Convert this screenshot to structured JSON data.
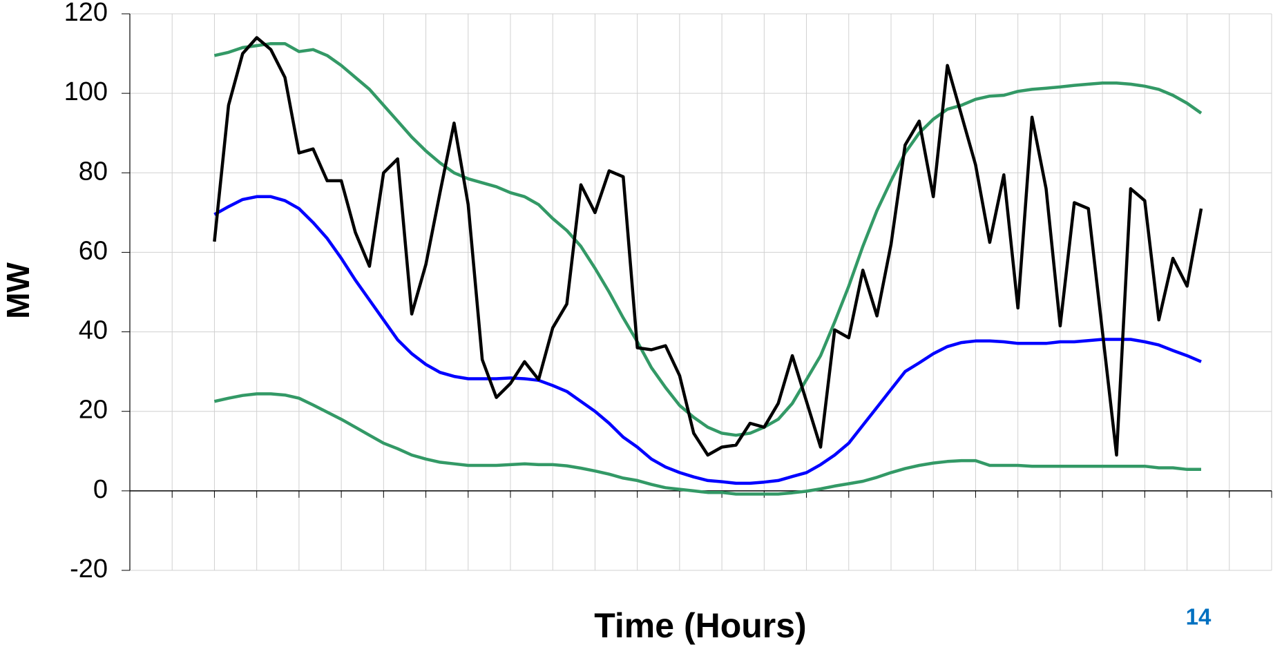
{
  "chart_data": {
    "type": "line",
    "x_label": "Time (Hours)",
    "y_label": "MW",
    "categories": [
      null,
      null,
      null,
      null,
      null,
      null,
      null,
      null,
      null,
      null,
      null,
      null,
      null,
      null,
      null,
      null,
      null,
      null,
      null,
      null,
      null,
      null,
      null,
      null,
      null,
      null,
      null,
      null,
      null,
      null,
      null,
      null,
      null,
      null,
      null,
      null,
      null,
      null,
      null,
      null,
      null,
      null,
      null,
      null,
      null,
      null,
      null,
      null,
      null,
      null,
      null,
      null,
      null,
      null,
      null,
      null,
      null,
      null,
      null,
      null,
      null,
      null,
      null,
      null,
      null,
      null,
      null,
      null,
      null,
      null,
      null
    ],
    "ylim": [
      -20,
      120
    ],
    "yticks": [
      -20,
      0,
      20,
      40,
      60,
      80,
      100,
      120
    ],
    "grid": true,
    "series": [
      {
        "color": "#339966",
        "values": [
          109.5,
          110.3,
          111.5,
          112,
          112.5,
          112.5,
          110.5,
          111,
          109.5,
          107,
          104,
          101,
          97,
          93,
          89,
          85.5,
          82.5,
          80,
          78.5,
          77.5,
          76.5,
          75,
          74,
          72,
          68.5,
          65.5,
          61.5,
          56,
          50,
          43.5,
          37.5,
          31,
          26,
          21.5,
          18.5,
          16,
          14.5,
          14,
          14.5,
          16,
          18,
          22,
          28,
          34,
          42.5,
          51.5,
          61.5,
          70.5,
          78,
          85,
          90,
          93.5,
          96,
          97,
          98.5,
          99.3,
          99.5,
          100.5,
          101,
          101.3,
          101.6,
          102,
          102.3,
          102.6,
          102.6,
          102.3,
          101.8,
          101,
          99.5,
          97.5,
          95
        ]
      },
      {
        "color": "#0000ff",
        "values": [
          69.5,
          71.5,
          73.3,
          74,
          74,
          73,
          71,
          67.5,
          63.5,
          58.5,
          53,
          48,
          43,
          38,
          34.5,
          31.8,
          29.8,
          28.8,
          28.2,
          28.2,
          28.2,
          28.4,
          28.2,
          27.8,
          26.5,
          25,
          22.5,
          20,
          17,
          13.5,
          11,
          8,
          6,
          4.6,
          3.5,
          2.6,
          2.3,
          1.9,
          1.9,
          2.2,
          2.6,
          3.6,
          4.6,
          6.6,
          9,
          12,
          16.5,
          21,
          25.5,
          30,
          32.2,
          34.5,
          36.3,
          37.3,
          37.7,
          37.7,
          37.5,
          37.1,
          37.1,
          37.1,
          37.5,
          37.5,
          37.8,
          38.1,
          38.1,
          38.1,
          37.5,
          36.7,
          35.3,
          34,
          32.5
        ]
      },
      {
        "color": "#339966",
        "values": [
          22.5,
          23.3,
          24,
          24.4,
          24.4,
          24.1,
          23.3,
          21.6,
          19.8,
          18,
          16,
          14,
          12,
          10.6,
          9,
          8,
          7.2,
          6.8,
          6.4,
          6.4,
          6.4,
          6.6,
          6.8,
          6.6,
          6.6,
          6.3,
          5.7,
          5,
          4.2,
          3.2,
          2.6,
          1.6,
          0.8,
          0.4,
          0,
          -0.4,
          -0.4,
          -0.8,
          -0.8,
          -0.8,
          -0.8,
          -0.5,
          -0.1,
          0.5,
          1.2,
          1.8,
          2.4,
          3.4,
          4.6,
          5.6,
          6.4,
          7,
          7.4,
          7.6,
          7.6,
          6.4,
          6.4,
          6.4,
          6.2,
          6.2,
          6.2,
          6.2,
          6.2,
          6.2,
          6.2,
          6.2,
          6.2,
          5.8,
          5.8,
          5.4,
          5.4
        ]
      },
      {
        "color": "#000000",
        "values": [
          62.7,
          97,
          110,
          114,
          111,
          104,
          85,
          86,
          78,
          78,
          65,
          56.5,
          80,
          83.5,
          44.5,
          57,
          75,
          92.5,
          72,
          33,
          23.5,
          27,
          32.5,
          28,
          41,
          47,
          77,
          70,
          80.5,
          79,
          36,
          35.5,
          36.5,
          29,
          14.5,
          9,
          11,
          11.5,
          17,
          16,
          22,
          34,
          22.5,
          11,
          40.5,
          38.5,
          55.5,
          44,
          62,
          87,
          93,
          74,
          107,
          94.5,
          82,
          62.5,
          79.5,
          46,
          94,
          76,
          41.5,
          72.5,
          71,
          40,
          9,
          76,
          73,
          43,
          58.5,
          51.5,
          71
        ]
      }
    ]
  },
  "page_number": "14"
}
